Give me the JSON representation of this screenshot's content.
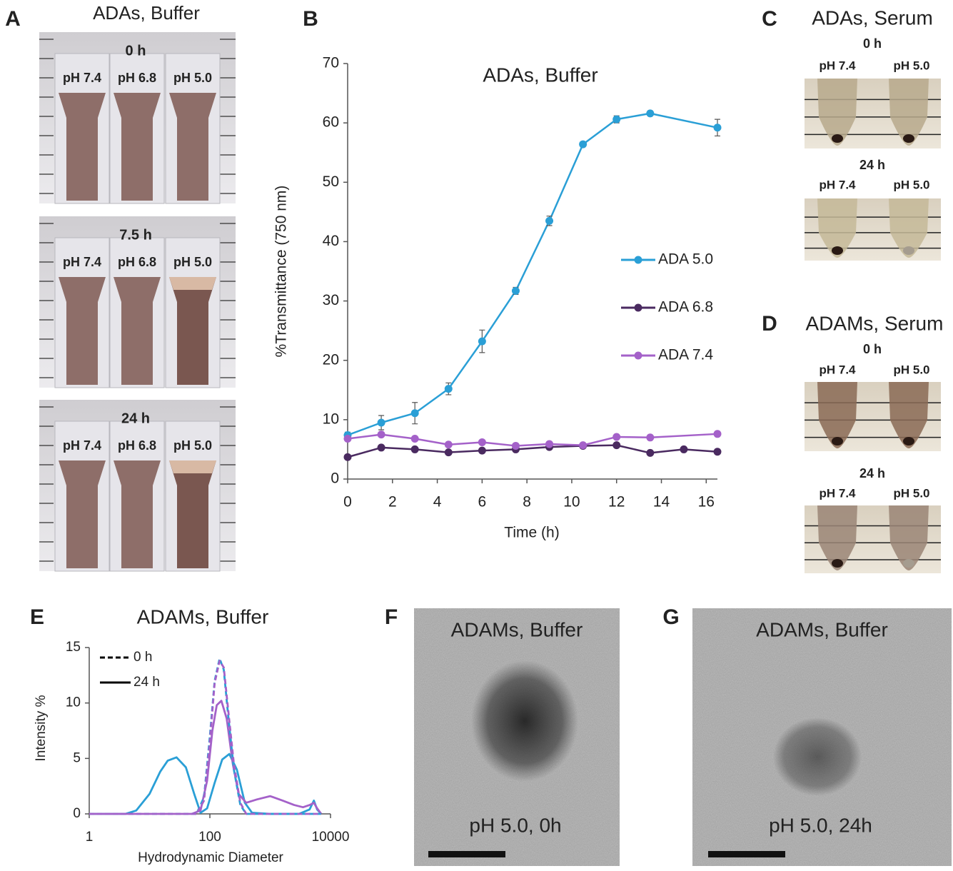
{
  "chart_data": [
    {
      "type": "line",
      "panel_label": "B",
      "title": "ADAs, Buffer",
      "x_label": "Time (h)",
      "y_label": "%Transmittance (750 nm)",
      "xlim": [
        0,
        16.5
      ],
      "xticks": [
        0,
        2,
        4,
        6,
        8,
        10,
        12,
        14,
        16
      ],
      "ylim": [
        0,
        70
      ],
      "yticks": [
        0,
        10,
        20,
        30,
        40,
        50,
        60,
        70
      ],
      "markers": true,
      "series": [
        {
          "name": "ADA 5.0",
          "color": "#2a9fd6",
          "x": [
            0,
            1.5,
            3,
            4.5,
            6,
            7.5,
            9,
            10.5,
            12,
            13.5,
            16.5
          ],
          "values": [
            7.4,
            9.5,
            11.1,
            15.2,
            23.2,
            31.7,
            43.5,
            56.4,
            60.6,
            61.6,
            59.2
          ],
          "errors": [
            0.5,
            1.2,
            1.8,
            1.0,
            1.9,
            0.6,
            0.8,
            0.3,
            0.6,
            0.4,
            1.4
          ]
        },
        {
          "name": "ADA 6.8",
          "color": "#4a2a60",
          "x": [
            0,
            1.5,
            3,
            4.5,
            6,
            7.5,
            9,
            10.5,
            12,
            13.5,
            15,
            16.5
          ],
          "values": [
            3.7,
            5.3,
            5.0,
            4.5,
            4.8,
            5.0,
            5.4,
            5.6,
            5.7,
            4.4,
            5.0,
            4.6
          ]
        },
        {
          "name": "ADA 7.4",
          "color": "#a461c9",
          "x": [
            0,
            1.5,
            3,
            4.5,
            6,
            7.5,
            9,
            10.5,
            12,
            13.5,
            16.5
          ],
          "values": [
            6.8,
            7.5,
            6.8,
            5.8,
            6.2,
            5.6,
            5.9,
            5.7,
            7.1,
            7.0,
            7.6
          ]
        }
      ]
    },
    {
      "type": "line",
      "panel_label": "E",
      "title": "ADAMs, Buffer",
      "x_label": "Hydrodynamic Diameter",
      "y_label": "Intensity %",
      "log_x": true,
      "xlim": [
        1,
        10000
      ],
      "xticks": [
        1,
        100,
        10000
      ],
      "ylim": [
        0,
        15
      ],
      "yticks": [
        0,
        5,
        10,
        15
      ],
      "legend": [
        {
          "name": "0 h",
          "dashed": true,
          "color": "#000000"
        },
        {
          "name": "24 h",
          "dashed": false,
          "color": "#000000"
        }
      ],
      "series": [
        {
          "color": "#2a9fd6",
          "dashed": false,
          "x": [
            1,
            4,
            6,
            10,
            15,
            20,
            28,
            40,
            55,
            70,
            90,
            120,
            160,
            210,
            280,
            380,
            500,
            1000,
            3000,
            4500,
            5300,
            6000,
            7000
          ],
          "values": [
            0,
            0,
            0.3,
            1.8,
            3.8,
            4.8,
            5.1,
            4.2,
            1.8,
            0.1,
            0.5,
            2.8,
            4.9,
            5.4,
            4.0,
            1.0,
            0.1,
            0,
            0,
            0.4,
            1.2,
            0.4,
            0
          ]
        },
        {
          "color": "#a461c9",
          "dashed": false,
          "x": [
            1,
            50,
            70,
            90,
            110,
            130,
            155,
            190,
            240,
            300,
            400,
            600,
            1000,
            1600,
            2500,
            3500,
            4500,
            5300,
            6000,
            7000
          ],
          "values": [
            0,
            0,
            0.3,
            3,
            7.5,
            9.8,
            10.2,
            8.6,
            4.5,
            1.8,
            1.0,
            1.3,
            1.6,
            1.2,
            0.8,
            0.6,
            0.8,
            1.0,
            0.5,
            0
          ]
        },
        {
          "color": "#2a9fd6",
          "dashed": true,
          "x": [
            1,
            60,
            80,
            100,
            120,
            145,
            170,
            200,
            250,
            320,
            400,
            7000
          ],
          "values": [
            0,
            0,
            1.5,
            7,
            12,
            14,
            13,
            9,
            4,
            0.8,
            0,
            0
          ]
        },
        {
          "color": "#a461c9",
          "dashed": true,
          "x": [
            1,
            60,
            80,
            100,
            120,
            145,
            170,
            200,
            250,
            320,
            400,
            7000
          ],
          "values": [
            0,
            0,
            1.2,
            6.5,
            11.8,
            13.8,
            13.2,
            9.5,
            4.5,
            1.0,
            0,
            0
          ]
        }
      ]
    }
  ],
  "panel_a": {
    "label": "A",
    "title": "ADAs, Buffer",
    "rows": [
      {
        "time": "0 h",
        "samples": [
          "pH 7.4",
          "pH 6.8",
          "pH 5.0"
        ]
      },
      {
        "time": "7.5 h",
        "samples": [
          "pH 7.4",
          "pH 6.8",
          "pH 5.0"
        ]
      },
      {
        "time": "24 h",
        "samples": [
          "pH 7.4",
          "pH 6.8",
          "pH 5.0"
        ]
      }
    ]
  },
  "panel_c": {
    "label": "C",
    "title": "ADAs, Serum",
    "rows": [
      {
        "time": "0 h",
        "samples": [
          "pH 7.4",
          "pH 5.0"
        ]
      },
      {
        "time": "24 h",
        "samples": [
          "pH 7.4",
          "pH 5.0"
        ]
      }
    ]
  },
  "panel_d": {
    "label": "D",
    "title": "ADAMs, Serum",
    "rows": [
      {
        "time": "0 h",
        "samples": [
          "pH 7.4",
          "pH 5.0"
        ]
      },
      {
        "time": "24 h",
        "samples": [
          "pH 7.4",
          "pH 5.0"
        ]
      }
    ]
  },
  "panel_f": {
    "label": "F",
    "title": "ADAMs, Buffer",
    "caption": "pH 5.0, 0h"
  },
  "panel_g": {
    "label": "G",
    "title": "ADAMs, Buffer",
    "caption": "pH 5.0, 24h"
  }
}
